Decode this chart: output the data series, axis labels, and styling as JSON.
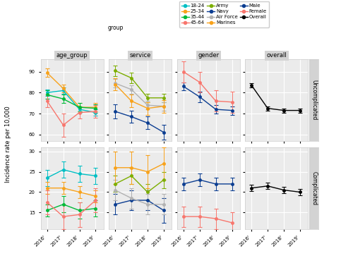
{
  "years": [
    2016,
    2017,
    2018,
    2019
  ],
  "panels": {
    "age_group": {
      "Uncomplicated": {
        "18-24": {
          "y": [
            80.0,
            81.0,
            72.0,
            70.5
          ],
          "ci": [
            1.5,
            1.5,
            1.5,
            1.5
          ],
          "color": "#00BFC4"
        },
        "25-34": {
          "y": [
            89.5,
            82.0,
            73.0,
            73.0
          ],
          "ci": [
            2.0,
            2.0,
            2.0,
            2.0
          ],
          "color": "#F8A21B"
        },
        "35-44": {
          "y": [
            79.0,
            77.0,
            73.0,
            72.5
          ],
          "ci": [
            2.0,
            2.0,
            2.0,
            2.0
          ],
          "color": "#00BA38"
        },
        "45-64": {
          "y": [
            76.0,
            64.5,
            70.5,
            71.0
          ],
          "ci": [
            3.0,
            5.5,
            3.0,
            3.0
          ],
          "color": "#F8766D"
        }
      },
      "Complicated": {
        "18-24": {
          "y": [
            23.5,
            25.5,
            24.5,
            24.0
          ],
          "ci": [
            2.0,
            2.0,
            2.0,
            2.0
          ],
          "color": "#00BFC4"
        },
        "25-34": {
          "y": [
            21.0,
            21.0,
            20.0,
            19.0
          ],
          "ci": [
            1.5,
            1.5,
            1.5,
            1.5
          ],
          "color": "#F8A21B"
        },
        "35-44": {
          "y": [
            15.5,
            17.0,
            15.5,
            16.0
          ],
          "ci": [
            1.5,
            2.0,
            2.0,
            2.0
          ],
          "color": "#00BA38"
        },
        "45-64": {
          "y": [
            17.5,
            14.0,
            14.5,
            18.0
          ],
          "ci": [
            3.0,
            3.0,
            3.0,
            3.0
          ],
          "color": "#F8766D"
        }
      }
    },
    "service": {
      "Uncomplicated": {
        "Army": {
          "y": [
            90.5,
            87.0,
            77.5,
            77.5
          ],
          "ci": [
            2.5,
            2.5,
            2.0,
            2.0
          ],
          "color": "#7CAE00"
        },
        "Navy": {
          "y": [
            71.0,
            68.5,
            65.5,
            61.0
          ],
          "ci": [
            3.5,
            3.0,
            3.0,
            3.5
          ],
          "color": "#0B3D91"
        },
        "Air Force": {
          "y": [
            84.5,
            81.5,
            74.0,
            73.5
          ],
          "ci": [
            2.0,
            2.0,
            2.0,
            2.0
          ],
          "color": "#B2B2B2"
        },
        "Marines": {
          "y": [
            84.0,
            76.0,
            72.5,
            73.5
          ],
          "ci": [
            3.0,
            3.0,
            3.0,
            3.0
          ],
          "color": "#F8A21B"
        }
      },
      "Complicated": {
        "Army": {
          "y": [
            22.0,
            24.0,
            20.0,
            23.0
          ],
          "ci": [
            2.0,
            2.0,
            2.0,
            2.0
          ],
          "color": "#7CAE00"
        },
        "Navy": {
          "y": [
            17.0,
            18.0,
            18.0,
            15.5
          ],
          "ci": [
            2.5,
            2.5,
            2.5,
            3.0
          ],
          "color": "#0B3D91"
        },
        "Air Force": {
          "y": [
            20.5,
            18.5,
            17.0,
            17.0
          ],
          "ci": [
            2.5,
            2.5,
            2.5,
            2.5
          ],
          "color": "#B2B2B2"
        },
        "Marines": {
          "y": [
            26.0,
            26.0,
            25.0,
            27.0
          ],
          "ci": [
            4.0,
            4.0,
            4.0,
            4.0
          ],
          "color": "#F8A21B"
        }
      }
    },
    "gender": {
      "Uncomplicated": {
        "Male": {
          "y": [
            83.0,
            78.0,
            72.0,
            71.5
          ],
          "ci": [
            2.0,
            2.5,
            2.0,
            2.0
          ],
          "color": "#0B3D91"
        },
        "Female": {
          "y": [
            90.0,
            85.0,
            76.0,
            75.5
          ],
          "ci": [
            5.0,
            5.0,
            5.0,
            5.0
          ],
          "color": "#F8766D"
        }
      },
      "Complicated": {
        "Male": {
          "y": [
            22.0,
            23.0,
            22.0,
            22.0
          ],
          "ci": [
            1.5,
            1.5,
            1.5,
            1.5
          ],
          "color": "#0B3D91"
        },
        "Female": {
          "y": [
            14.0,
            14.0,
            13.5,
            12.5
          ],
          "ci": [
            2.5,
            2.5,
            2.5,
            2.5
          ],
          "color": "#F8766D"
        }
      }
    },
    "overall": {
      "Uncomplicated": {
        "Overall": {
          "y": [
            83.5,
            72.5,
            71.5,
            71.5
          ],
          "ci": [
            1.0,
            1.0,
            1.0,
            1.0
          ],
          "color": "#000000"
        }
      },
      "Complicated": {
        "Overall": {
          "y": [
            21.0,
            21.5,
            20.5,
            20.0
          ],
          "ci": [
            0.8,
            0.8,
            0.8,
            0.8
          ],
          "color": "#000000"
        }
      }
    }
  },
  "col_order": [
    "age_group",
    "service",
    "gender",
    "overall"
  ],
  "row_order": [
    "Uncomplicated",
    "Complicated"
  ],
  "col_titles": [
    "age_group",
    "service",
    "gender",
    "overall"
  ],
  "row_titles": [
    "Uncomplicated",
    "Complicated"
  ],
  "ylabel": "Incidence rate per 10,000",
  "panel_bg": "#EBEBEB",
  "grid_color": "#FFFFFF",
  "strip_bg": "#D3D3D3",
  "ylim_Uncomplicated": [
    57,
    96
  ],
  "ylim_Complicated": [
    11,
    31
  ],
  "yticks_Uncomplicated": [
    60,
    70,
    80,
    90
  ],
  "yticks_Complicated": [
    15,
    20,
    25,
    30
  ],
  "legend_items": [
    {
      "label": "18-24",
      "color": "#00BFC4"
    },
    {
      "label": "25-34",
      "color": "#F8A21B"
    },
    {
      "label": "35-44",
      "color": "#00BA38"
    },
    {
      "label": "45-64",
      "color": "#F8766D"
    },
    {
      "label": "Army",
      "color": "#7CAE00"
    },
    {
      "label": "Navy",
      "color": "#0B3D91"
    },
    {
      "label": "Air Force",
      "color": "#B2B2B2"
    },
    {
      "label": "Marines",
      "color": "#F8A21B"
    },
    {
      "label": "Male",
      "color": "#0B3D91"
    },
    {
      "label": "Female",
      "color": "#F8766D"
    },
    {
      "label": "Overall",
      "color": "#000000"
    }
  ]
}
